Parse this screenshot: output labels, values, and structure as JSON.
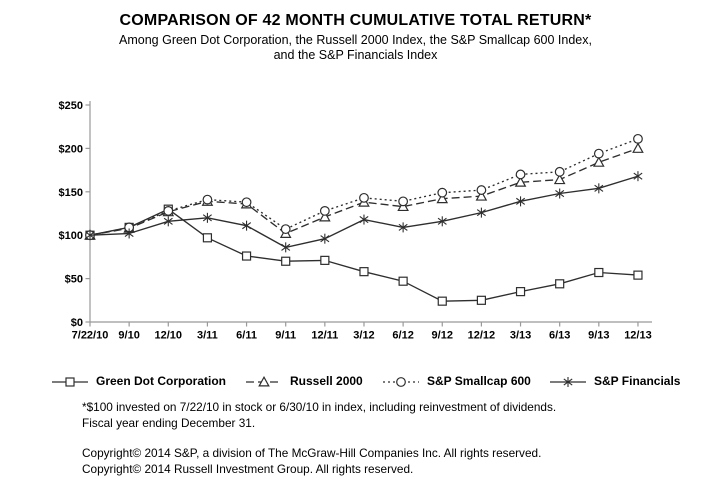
{
  "title": "COMPARISON OF 42 MONTH CUMULATIVE TOTAL RETURN*",
  "subtitle_line1": "Among Green Dot Corporation, the Russell 2000 Index, the S&P Smallcap 600 Index,",
  "subtitle_line2": "and the S&P Financials Index",
  "chart_data": {
    "type": "line",
    "title": "COMPARISON OF 42 MONTH CUMULATIVE TOTAL RETURN*",
    "xlabel": "",
    "ylabel": "",
    "grid": false,
    "legend_position": "bottom",
    "ylim": [
      0,
      250
    ],
    "y_ticks": [
      "$250",
      "$200",
      "$150",
      "$100",
      "$50",
      "$0"
    ],
    "y_tick_values": [
      250,
      200,
      150,
      100,
      50,
      0
    ],
    "categories": [
      "7/22/10",
      "9/10",
      "12/10",
      "3/11",
      "6/11",
      "9/11",
      "12/11",
      "3/12",
      "6/12",
      "9/12",
      "12/12",
      "3/13",
      "6/13",
      "9/13",
      "12/13"
    ],
    "series": [
      {
        "name": "Green Dot Corporation",
        "marker": "square",
        "line": "solid",
        "values": [
          100,
          109,
          130,
          97,
          76,
          70,
          71,
          58,
          47,
          24,
          25,
          35,
          44,
          57,
          54
        ]
      },
      {
        "name": "Russell 2000",
        "marker": "triangle",
        "line": "dashed",
        "values": [
          100,
          108,
          127,
          139,
          136,
          102,
          121,
          138,
          133,
          142,
          145,
          161,
          164,
          184,
          200
        ]
      },
      {
        "name": "S&P Smallcap 600",
        "marker": "circle",
        "line": "dotted",
        "values": [
          100,
          109,
          128,
          141,
          138,
          107,
          128,
          143,
          139,
          149,
          152,
          170,
          173,
          194,
          211
        ]
      },
      {
        "name": "S&P Financials",
        "marker": "asterisk",
        "line": "solid",
        "values": [
          100,
          102,
          116,
          120,
          111,
          86,
          96,
          118,
          109,
          116,
          126,
          139,
          148,
          154,
          168
        ]
      }
    ]
  },
  "footnotes": {
    "line1": "*$100 invested on 7/22/10 in stock or 6/30/10 in index, including reinvestment of dividends.",
    "line2": "Fiscal year ending December 31.",
    "copyright1": "Copyright© 2014 S&P, a division of The McGraw-Hill Companies Inc. All rights reserved.",
    "copyright2": "Copyright© 2014 Russell Investment Group. All rights reserved."
  },
  "colors": {
    "series_line": "#2e2e2e",
    "axis": "#999999",
    "marker_fill": "#ffffff",
    "text": "#000000",
    "background": "#ffffff"
  }
}
